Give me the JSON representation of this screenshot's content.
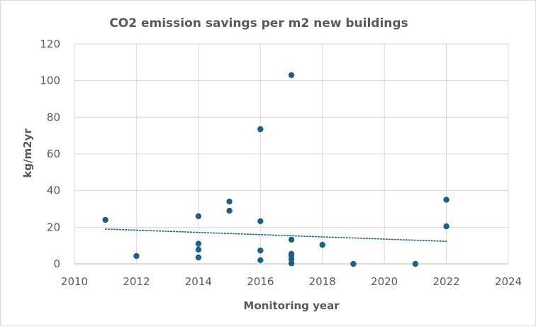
{
  "chart_data": {
    "type": "scatter",
    "title": "CO2 emission savings per m2 new buildings",
    "xlabel": "Monitoring year",
    "ylabel": "kg/m2yr",
    "xlim": [
      2010,
      2024
    ],
    "ylim": [
      0,
      120
    ],
    "xticks": [
      2010,
      2012,
      2014,
      2016,
      2018,
      2020,
      2022,
      2024
    ],
    "yticks": [
      0,
      20,
      40,
      60,
      80,
      100,
      120
    ],
    "grid": true,
    "legend": "none",
    "series": [
      {
        "color": "#1f5f7f",
        "points": [
          {
            "x": 2011,
            "y": 24
          },
          {
            "x": 2012,
            "y": 4.3
          },
          {
            "x": 2014,
            "y": 26
          },
          {
            "x": 2014,
            "y": 11
          },
          {
            "x": 2014,
            "y": 7.8
          },
          {
            "x": 2014,
            "y": 3.5
          },
          {
            "x": 2015,
            "y": 34
          },
          {
            "x": 2015,
            "y": 29
          },
          {
            "x": 2016,
            "y": 73.5
          },
          {
            "x": 2016,
            "y": 23.3
          },
          {
            "x": 2016,
            "y": 7.3
          },
          {
            "x": 2016,
            "y": 2
          },
          {
            "x": 2017,
            "y": 103
          },
          {
            "x": 2017,
            "y": 13.2
          },
          {
            "x": 2017,
            "y": 5.5
          },
          {
            "x": 2017,
            "y": 4.5
          },
          {
            "x": 2017,
            "y": 2.5
          },
          {
            "x": 2017,
            "y": 0.3
          },
          {
            "x": 2018,
            "y": 10.4
          },
          {
            "x": 2019,
            "y": 0
          },
          {
            "x": 2021,
            "y": 0
          },
          {
            "x": 2022,
            "y": 35
          },
          {
            "x": 2022,
            "y": 20.5
          }
        ]
      }
    ],
    "trendline": {
      "type": "linear",
      "style": "dotted",
      "color": "#1f5f7f",
      "x": [
        2011,
        2022
      ],
      "y": [
        19.0,
        12.3
      ]
    }
  }
}
